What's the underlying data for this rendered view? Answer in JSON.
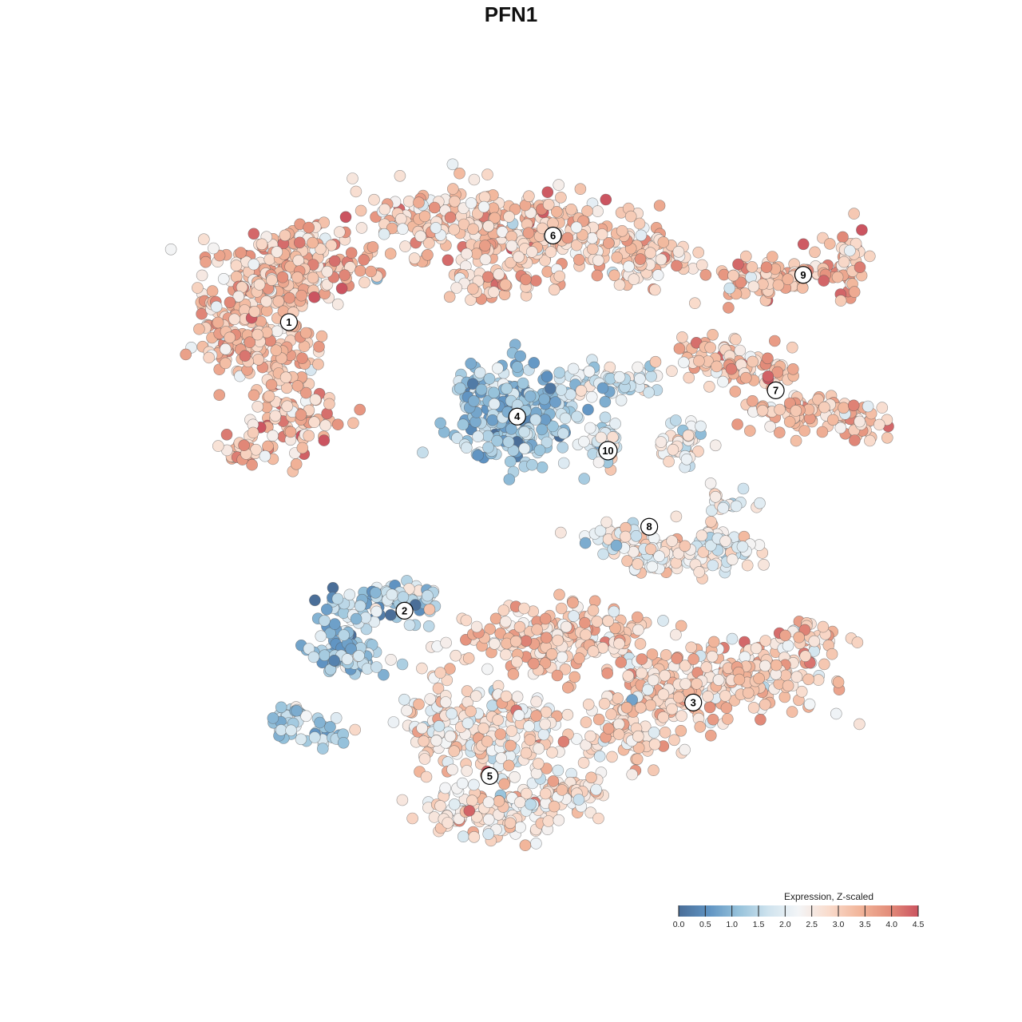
{
  "chart_data": {
    "type": "scatter",
    "title": "PFN1",
    "xlabel": "",
    "ylabel": "",
    "axes_visible": false,
    "grid": false,
    "color_scale": {
      "title": "Expression, Z-scaled",
      "min": 0.0,
      "max": 4.5,
      "ticks": [
        "0.0",
        "0.5",
        "1.0",
        "1.5",
        "2.0",
        "2.5",
        "3.0",
        "3.5",
        "4.0",
        "4.5"
      ],
      "colors": [
        "#4a6e98",
        "#5f93c2",
        "#96c2db",
        "#cfe3ee",
        "#f3f5f7",
        "#f9dccd",
        "#f2b79c",
        "#e48f7b",
        "#cb5460"
      ],
      "placement": "bottom-right"
    },
    "clusters": [
      {
        "label": "1",
        "x": -7.3,
        "y": 7.2,
        "mean_expression": 3.2
      },
      {
        "label": "2",
        "x": -3.1,
        "y": -3.8,
        "mean_expression": 1.3
      },
      {
        "label": "3",
        "x": 7.4,
        "y": -7.3,
        "mean_expression": 3.0
      },
      {
        "label": "4",
        "x": 1.0,
        "y": 3.6,
        "mean_expression": 1.2
      },
      {
        "label": "5",
        "x": 0.0,
        "y": -10.1,
        "mean_expression": 2.6
      },
      {
        "label": "6",
        "x": 2.3,
        "y": 10.5,
        "mean_expression": 3.1
      },
      {
        "label": "7",
        "x": 10.4,
        "y": 4.6,
        "mean_expression": 3.2
      },
      {
        "label": "8",
        "x": 5.8,
        "y": -0.6,
        "mean_expression": 2.4
      },
      {
        "label": "9",
        "x": 11.4,
        "y": 9.0,
        "mean_expression": 3.3
      },
      {
        "label": "10",
        "x": 4.3,
        "y": 2.3,
        "mean_expression": 1.8
      }
    ]
  }
}
